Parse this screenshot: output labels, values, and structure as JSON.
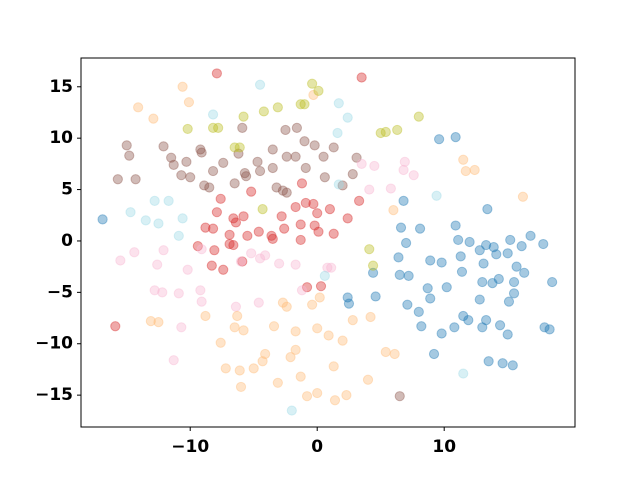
{
  "chart_data": {
    "type": "scatter",
    "xlim": [
      -18.6,
      20.3
    ],
    "ylim": [
      -18.1,
      17.8
    ],
    "xticks": [
      {
        "value": -10,
        "label": "−10"
      },
      0,
      10
    ],
    "yticks": [
      {
        "value": -15,
        "label": "−15"
      },
      {
        "value": -10,
        "label": "−10"
      },
      {
        "value": -5,
        "label": "−5"
      },
      0,
      5,
      10,
      15
    ],
    "opacity": 0.4,
    "series": [
      {
        "color": "#1f77b4",
        "x": [
          -16.9,
          2.4,
          2.5,
          4.4,
          4.6,
          6.8,
          6.6,
          8.1,
          7.0,
          6.4,
          6.5,
          7.2,
          7.1,
          8.0,
          8.2,
          8.7,
          8.9,
          8.9,
          9.8,
          9.6,
          10.9,
          10.9,
          11.1,
          11.3,
          11.4,
          10.2,
          9.8,
          9.2,
          10.8,
          11.5,
          11.9,
          12.0,
          12.8,
          13.4,
          13.3,
          13.1,
          13.9,
          14.1,
          13.0,
          12.8,
          13.8,
          14.3,
          13.0,
          13.3,
          14.4,
          13.5,
          14.6,
          15.4,
          15.2,
          15.0,
          15.7,
          15.5,
          15.5,
          16.1,
          16.8,
          17.8,
          16.3,
          15.1,
          15.0,
          17.9,
          18.3,
          18.5
        ],
        "y": [
          2.1,
          -5.5,
          -6.1,
          -3.1,
          -5.4,
          3.9,
          1.3,
          1.2,
          -0.2,
          -1.6,
          -3.3,
          -3.4,
          -6.2,
          -6.9,
          -8.3,
          -4.6,
          -5.6,
          -1.9,
          -2.1,
          9.9,
          10.1,
          1.5,
          0.1,
          -1.5,
          -3.0,
          -4.5,
          -9.0,
          -11.0,
          -8.4,
          -7.3,
          -7.7,
          -0.1,
          -0.9,
          3.1,
          -0.4,
          -2.2,
          -0.6,
          -1.3,
          -4.0,
          -5.7,
          -4.1,
          -3.7,
          -8.4,
          -7.7,
          -8.2,
          -11.7,
          -11.9,
          -12.1,
          0.1,
          -1.2,
          -2.5,
          -4.0,
          -5.1,
          -0.5,
          0.5,
          -0.3,
          -3.1,
          -5.9,
          -9.1,
          -8.4,
          -8.6,
          -4.0
        ]
      },
      {
        "color": "#d62728",
        "x": [
          -7.9,
          -7.6,
          -6.6,
          -6.4,
          -8.8,
          -8.2,
          -6.9,
          -9.4,
          -8.1,
          -8.3,
          -7.4,
          -6.6,
          -5.5,
          -5.8,
          -5.2,
          -4.6,
          -3.6,
          -3.5,
          -2.6,
          -2.8,
          -1.7,
          -1.3,
          -1.2,
          -0.9,
          -0.3,
          0.0,
          1.0,
          -0.2,
          0.1,
          1.3,
          2.4,
          3.3,
          3.5,
          -7.9,
          -0.8,
          0.3,
          -1.3,
          -5.9,
          -6.9,
          -15.9
        ],
        "y": [
          2.8,
          4.1,
          2.2,
          1.8,
          1.3,
          1.2,
          0.6,
          -0.5,
          -0.9,
          -2.4,
          -2.8,
          -0.4,
          0.5,
          2.4,
          4.8,
          0.9,
          0.5,
          0.2,
          1.2,
          2.4,
          3.3,
          1.6,
          5.6,
          3.7,
          3.6,
          2.7,
          3.1,
          1.5,
          0.9,
          0.7,
          2.2,
          3.9,
          15.9,
          16.3,
          -4.5,
          -4.4,
          0.1,
          -2.0,
          -0.3,
          -8.3
        ]
      },
      {
        "color": "#8c564b",
        "x": [
          -14.3,
          -15.7,
          -15.0,
          -14.8,
          -12.1,
          -11.5,
          -11.3,
          -10.3,
          -10.7,
          -10.0,
          -9.2,
          -9.1,
          -8.9,
          -8.2,
          -8.5,
          -7.4,
          -6.5,
          -6.2,
          -5.7,
          -5.6,
          -5.9,
          -4.7,
          -4.5,
          -3.5,
          -3.5,
          -3.2,
          -2.5,
          -2.4,
          -2.7,
          -1.6,
          -1.7,
          -1.0,
          -0.9,
          -0.2,
          0.5,
          0.6,
          1.3,
          3.1,
          2.8,
          2.0,
          6.5,
          -2.4
        ],
        "y": [
          6.0,
          6.0,
          9.3,
          8.3,
          9.2,
          8.1,
          7.4,
          7.7,
          6.4,
          6.2,
          8.9,
          8.6,
          5.4,
          6.8,
          5.2,
          7.6,
          5.6,
          8.5,
          6.6,
          6.3,
          11.0,
          7.7,
          6.8,
          8.9,
          7.1,
          5.2,
          10.8,
          8.2,
          4.9,
          11.0,
          8.2,
          9.7,
          7.1,
          9.3,
          8.2,
          6.2,
          9.1,
          8.1,
          6.5,
          5.4,
          -15.1,
          4.7
        ]
      },
      {
        "color": "#f7b6d2",
        "x": [
          -14.4,
          -15.5,
          -12.6,
          -12.1,
          -12.2,
          -12.8,
          -10.9,
          -10.2,
          -9.1,
          -9.2,
          -9.1,
          -10.7,
          -11.3,
          -6.0,
          -5.2,
          -4.5,
          -4.1,
          -4.6,
          -6.4,
          -3.0,
          -1.7,
          0.8,
          1.1,
          3.5,
          4.5,
          4.1,
          5.8,
          6.9,
          6.8,
          7.6,
          -1.2
        ],
        "y": [
          -1.1,
          -1.9,
          -2.3,
          -0.9,
          -5.0,
          -4.8,
          -5.1,
          -2.8,
          -0.8,
          -4.8,
          -5.9,
          -8.4,
          -11.6,
          -2.0,
          -1.2,
          -1.7,
          -1.4,
          -6.0,
          -6.4,
          -2.2,
          -2.3,
          -2.6,
          -2.6,
          7.5,
          7.3,
          5.0,
          5.1,
          7.7,
          6.9,
          6.4,
          -4.8
        ]
      },
      {
        "color": "#ffbb78",
        "x": [
          -10.6,
          -10.1,
          -14.1,
          -12.9,
          -0.3,
          -13.1,
          -12.5,
          -8.8,
          -7.6,
          -6.3,
          -6.5,
          -5.8,
          -7.2,
          -6.0,
          -6.1,
          -5.0,
          -4.1,
          -4.3,
          -3.1,
          -2.1,
          -1.7,
          -3.4,
          -2.7,
          -2.4,
          -1.7,
          -0.4,
          0.0,
          0.2,
          -1.3,
          -0.8,
          0.0,
          1.3,
          1.4,
          2.3,
          2.0,
          2.8,
          4.2,
          4.0,
          5.4,
          6.1,
          11.5,
          11.7,
          12.4,
          16.2,
          6.0,
          0.9
        ],
        "y": [
          15.0,
          13.5,
          13.0,
          11.9,
          14.2,
          -7.8,
          -7.9,
          -7.3,
          -9.9,
          -7.3,
          -8.4,
          -8.7,
          -12.4,
          -14.2,
          -12.6,
          -12.4,
          -11.0,
          -11.7,
          -13.8,
          -11.3,
          -10.6,
          -8.3,
          -6.0,
          -6.4,
          -8.8,
          -6.2,
          -8.5,
          -5.5,
          -13.2,
          -15.1,
          -14.8,
          -12.2,
          -15.5,
          -15.0,
          -9.7,
          -7.7,
          -7.4,
          -13.5,
          -10.8,
          -11.0,
          7.9,
          6.8,
          6.9,
          4.3,
          3.0,
          -9.2
        ]
      },
      {
        "color": "#bcbd22",
        "x": [
          -10.2,
          -8.2,
          -7.8,
          -6.5,
          -6.1,
          -5.8,
          -4.2,
          -3.1,
          -1.3,
          -1.0,
          -0.4,
          0.1,
          -4.3,
          5.0,
          5.4,
          6.3,
          8.0,
          4.1,
          4.4
        ],
        "y": [
          10.9,
          11.0,
          11.0,
          9.1,
          9.1,
          12.1,
          12.6,
          13.0,
          13.3,
          13.3,
          15.3,
          14.6,
          3.1,
          10.5,
          10.6,
          10.8,
          12.1,
          -0.8,
          -2.4
        ]
      },
      {
        "color": "#9edae5",
        "x": [
          -8.2,
          -4.5,
          1.7,
          1.6,
          2.4,
          1.7,
          -14.7,
          -13.5,
          -12.8,
          -12.5,
          -11.7,
          -10.6,
          -10.9,
          -2.0,
          11.5,
          9.4,
          0.6
        ],
        "y": [
          12.3,
          15.2,
          13.4,
          10.5,
          12.0,
          5.5,
          2.8,
          2.0,
          3.9,
          1.7,
          3.9,
          2.2,
          0.5,
          -16.5,
          -12.9,
          4.4,
          -3.4
        ]
      }
    ]
  }
}
